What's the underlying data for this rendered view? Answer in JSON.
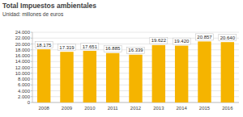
{
  "chart_data": {
    "type": "bar",
    "title": "Total Impuestos ambientales",
    "subtitle": "Unidad: millones de euros",
    "categories": [
      "2008",
      "2009",
      "2010",
      "2011",
      "2012",
      "2013",
      "2014",
      "2015",
      "2016"
    ],
    "values": [
      18175,
      17319,
      17651,
      16885,
      16339,
      19622,
      19420,
      20857,
      20640
    ],
    "value_labels": [
      "18.175",
      "17.319",
      "17.651",
      "16.885",
      "16.339",
      "19.622",
      "19.420",
      "20.857",
      "20.640"
    ],
    "color": "#f5b400",
    "ylim": [
      0,
      24000
    ],
    "yticks": [
      0,
      {
        "value": 2000,
        "label": "2.000"
      },
      {
        "value": 4000,
        "label": "4.000"
      },
      {
        "value": 6000,
        "label": "6.000"
      },
      {
        "value": 8000,
        "label": "8.000"
      },
      {
        "value": 10000,
        "label": "10.000"
      },
      {
        "value": 12000,
        "label": "12.000"
      },
      {
        "value": 14000,
        "label": "14.000"
      },
      {
        "value": 16000,
        "label": "16.000"
      },
      {
        "value": 18000,
        "label": "18.000"
      },
      {
        "value": 20000,
        "label": "20.000"
      },
      {
        "value": 22000,
        "label": "22.000"
      },
      {
        "value": 24000,
        "label": "24.000"
      }
    ],
    "grid": true,
    "data_labels": true
  }
}
